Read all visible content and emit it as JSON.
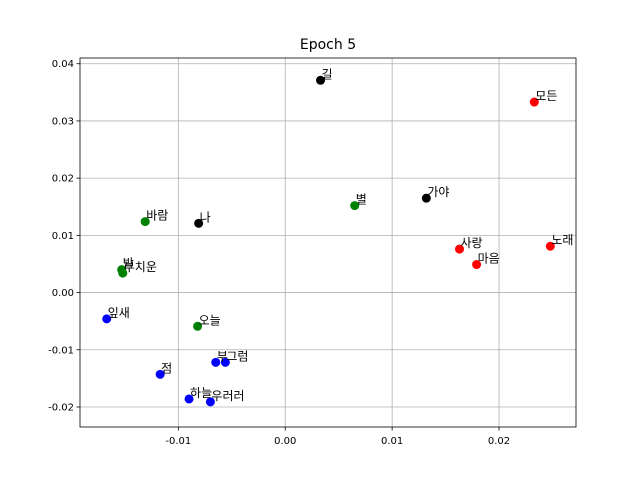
{
  "chart_data": {
    "type": "scatter",
    "title": "Epoch 5",
    "xlabel": "",
    "ylabel": "",
    "xlim": [
      -0.0192,
      0.0272
    ],
    "ylim": [
      -0.0235,
      0.041
    ],
    "xticks": [
      -0.01,
      0.0,
      0.01,
      0.02
    ],
    "xtick_labels": [
      "-0.01",
      "0.00",
      "0.01",
      "0.02"
    ],
    "yticks": [
      -0.02,
      -0.01,
      0.0,
      0.01,
      0.02,
      0.03,
      0.04
    ],
    "ytick_labels": [
      "-0.02",
      "-0.01",
      "0.00",
      "0.01",
      "0.02",
      "0.03",
      "0.04"
    ],
    "grid": true,
    "colors": {
      "red": "#ff0000",
      "black": "#000000",
      "green": "#008000",
      "blue": "#0000ff",
      "grid": "#b0b0b0"
    },
    "points": [
      {
        "label": "길",
        "x": 0.0033,
        "y": 0.0371,
        "color": "black"
      },
      {
        "label": "가야",
        "x": 0.0132,
        "y": 0.0165,
        "color": "black"
      },
      {
        "label": "나",
        "x": -0.0081,
        "y": 0.0121,
        "color": "black"
      },
      {
        "label": "모든",
        "x": 0.0233,
        "y": 0.0333,
        "color": "red"
      },
      {
        "label": "사랑",
        "x": 0.0163,
        "y": 0.0076,
        "color": "red"
      },
      {
        "label": "노래",
        "x": 0.0248,
        "y": 0.0081,
        "color": "red"
      },
      {
        "label": "마음",
        "x": 0.0179,
        "y": 0.0049,
        "color": "red"
      },
      {
        "label": "별",
        "x": 0.0065,
        "y": 0.0152,
        "color": "green"
      },
      {
        "label": "바람",
        "x": -0.0131,
        "y": 0.0124,
        "color": "green"
      },
      {
        "label": "밤",
        "x": -0.0153,
        "y": 0.004,
        "color": "green"
      },
      {
        "label": "부치운",
        "x": -0.0152,
        "y": 0.0034,
        "color": "green"
      },
      {
        "label": "오늘",
        "x": -0.0082,
        "y": -0.0059,
        "color": "green"
      },
      {
        "label": "잎새",
        "x": -0.0167,
        "y": -0.0046,
        "color": "blue"
      },
      {
        "label": "부",
        "x": -0.0065,
        "y": -0.0122,
        "color": "blue"
      },
      {
        "label": "그럼",
        "x": -0.0056,
        "y": -0.0122,
        "color": "blue"
      },
      {
        "label": "점",
        "x": -0.0117,
        "y": -0.0143,
        "color": "blue"
      },
      {
        "label": "하늘",
        "x": -0.009,
        "y": -0.0186,
        "color": "blue"
      },
      {
        "label": "우러러",
        "x": -0.007,
        "y": -0.0191,
        "color": "blue"
      }
    ]
  }
}
